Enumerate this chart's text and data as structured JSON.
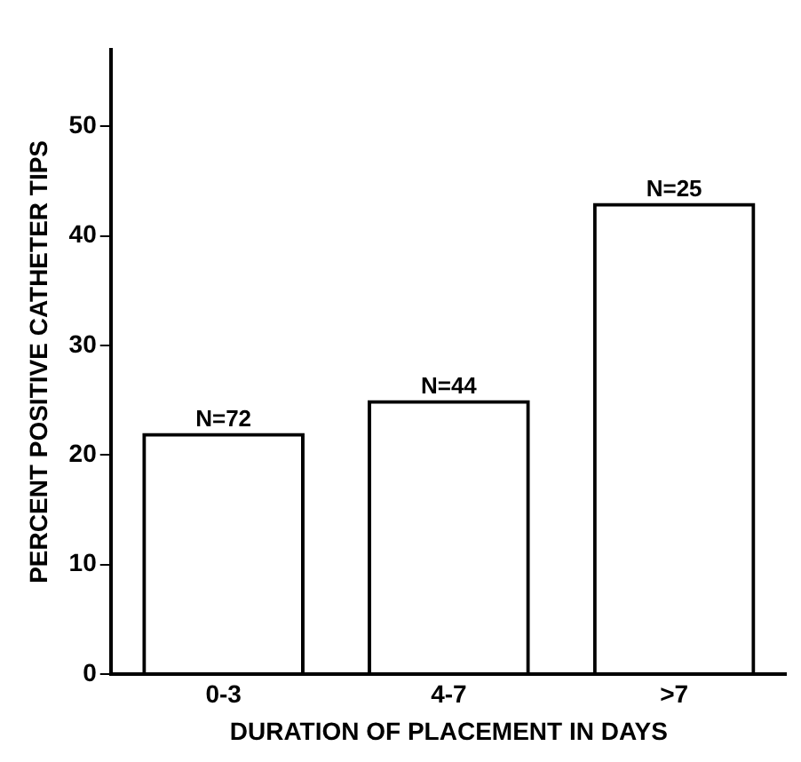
{
  "chart_data": {
    "type": "bar",
    "xlabel": "DURATION OF PLACEMENT IN DAYS",
    "ylabel": "PERCENT POSITIVE CATHETER TIPS",
    "categories": [
      "0-3",
      "4-7",
      ">7"
    ],
    "values": [
      22,
      25,
      43
    ],
    "color": "#000000",
    "ylim": [
      0,
      57
    ],
    "yticks": [
      0,
      10,
      20,
      30,
      40,
      50
    ],
    "grid": false,
    "legend": false,
    "annotations": [
      {
        "text": "N=72",
        "x": "0-3",
        "y": 22
      },
      {
        "text": "N=44",
        "x": "4-7",
        "y": 25
      },
      {
        "text": "N=25",
        "x": ">7",
        "y": 43
      }
    ]
  }
}
